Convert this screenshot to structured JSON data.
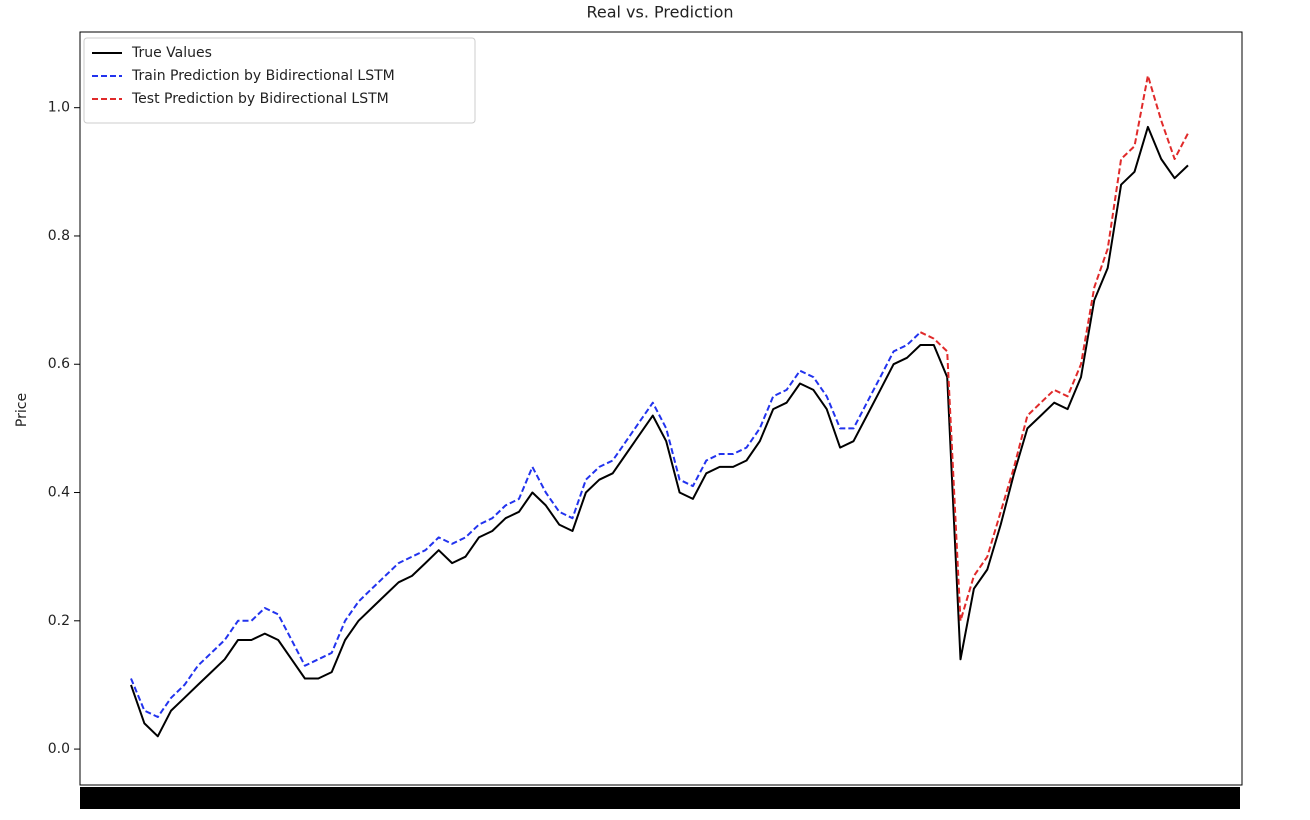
{
  "chart_data": {
    "type": "line",
    "title": "Real vs. Prediction",
    "y_label": "Price",
    "ylim": [
      -0.056,
      1.118
    ],
    "yticks": [
      {
        "value": 0,
        "label": "0.0"
      },
      0.2,
      0.4,
      0.6,
      0.8,
      {
        "value": 1,
        "label": "1.0"
      }
    ],
    "legend": "upper left",
    "series": [
      {
        "name": "True Values",
        "color": "#000000",
        "dash": false,
        "values": [
          0.1,
          0.04,
          0.02,
          0.06,
          0.08,
          0.1,
          0.12,
          0.14,
          0.17,
          0.17,
          0.18,
          0.17,
          0.14,
          0.11,
          0.11,
          0.12,
          0.17,
          0.2,
          0.22,
          0.24,
          0.26,
          0.27,
          0.29,
          0.31,
          0.29,
          0.3,
          0.33,
          0.34,
          0.36,
          0.37,
          0.4,
          0.38,
          0.35,
          0.34,
          0.4,
          0.42,
          0.43,
          0.46,
          0.49,
          0.52,
          0.48,
          0.4,
          0.39,
          0.43,
          0.44,
          0.44,
          0.45,
          0.48,
          0.53,
          0.54,
          0.57,
          0.56,
          0.53,
          0.47,
          0.48,
          0.52,
          0.56,
          0.6,
          0.61,
          0.63,
          0.63,
          0.58,
          0.14,
          0.25,
          0.28,
          0.35,
          0.43,
          0.5,
          0.52,
          0.54,
          0.53,
          0.58,
          0.7,
          0.75,
          0.88,
          0.9,
          0.97,
          0.92,
          0.89,
          0.91
        ]
      },
      {
        "name": "Train Prediction by Bidirectional LSTM",
        "color": "#2233ee",
        "dash": true,
        "values": [
          0.11,
          0.06,
          0.05,
          0.08,
          0.1,
          0.13,
          0.15,
          0.17,
          0.2,
          0.2,
          0.22,
          0.21,
          0.17,
          0.13,
          0.14,
          0.15,
          0.2,
          0.23,
          0.25,
          0.27,
          0.29,
          0.3,
          0.31,
          0.33,
          0.32,
          0.33,
          0.35,
          0.36,
          0.38,
          0.39,
          0.44,
          0.4,
          0.37,
          0.36,
          0.42,
          0.44,
          0.45,
          0.48,
          0.51,
          0.54,
          0.5,
          0.42,
          0.41,
          0.45,
          0.46,
          0.46,
          0.47,
          0.5,
          0.55,
          0.56,
          0.59,
          0.58,
          0.55,
          0.5,
          0.5,
          0.54,
          0.58,
          0.62,
          0.63,
          0.65,
          null,
          null,
          null,
          null,
          null,
          null,
          null,
          null,
          null,
          null,
          null,
          null,
          null,
          null,
          null,
          null,
          null,
          null,
          null,
          null
        ]
      },
      {
        "name": "Test Prediction by Bidirectional LSTM",
        "color": "#e02a2a",
        "dash": true,
        "values": [
          null,
          null,
          null,
          null,
          null,
          null,
          null,
          null,
          null,
          null,
          null,
          null,
          null,
          null,
          null,
          null,
          null,
          null,
          null,
          null,
          null,
          null,
          null,
          null,
          null,
          null,
          null,
          null,
          null,
          null,
          null,
          null,
          null,
          null,
          null,
          null,
          null,
          null,
          null,
          null,
          null,
          null,
          null,
          null,
          null,
          null,
          null,
          null,
          null,
          null,
          null,
          null,
          null,
          null,
          null,
          null,
          null,
          null,
          null,
          0.65,
          0.64,
          0.62,
          0.2,
          0.27,
          0.3,
          0.37,
          0.44,
          0.52,
          0.54,
          0.56,
          0.55,
          0.6,
          0.72,
          0.78,
          0.92,
          0.94,
          1.05,
          0.98,
          0.92,
          0.96
        ]
      }
    ]
  }
}
